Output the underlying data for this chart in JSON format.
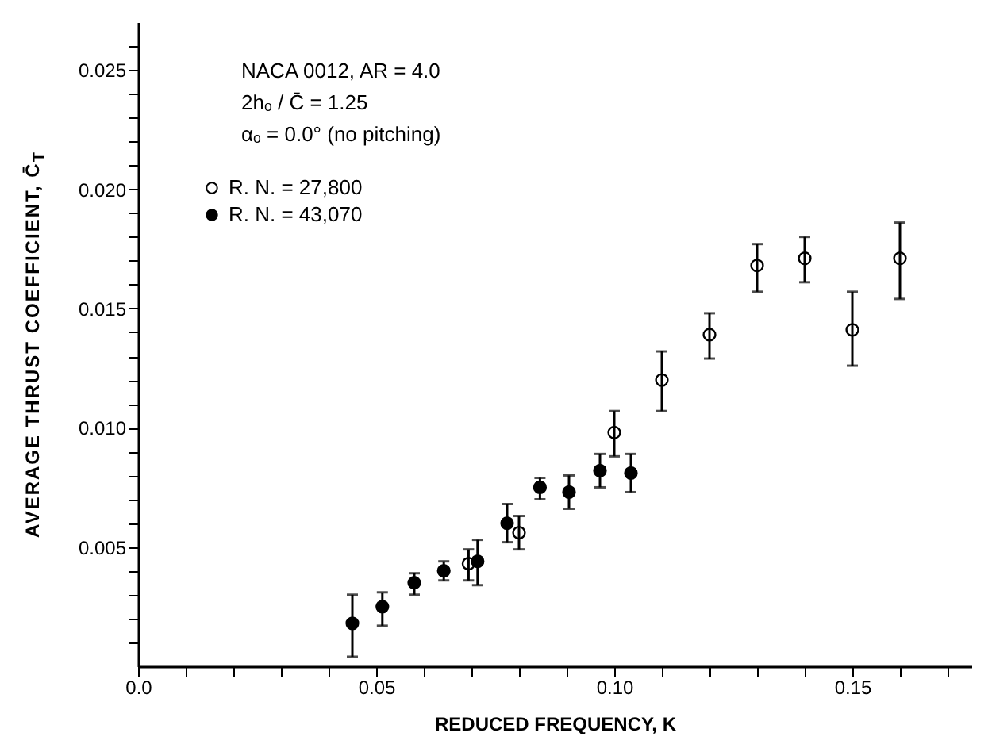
{
  "chart_data": {
    "type": "scatter",
    "xlabel": "REDUCED FREQUENCY, K",
    "ylabel": "AVERAGE THRUST COEFFICIENT, C̄$_{T}$",
    "annotations": [
      "NACA 0012,  AR = 4.0",
      "2hₒ / C̄ = 1.25",
      "αₒ = 0.0°  (no pitching)"
    ],
    "series": [
      {
        "name": "R. N. = 27,800",
        "color": "#ffffff",
        "x": [
          0.0694,
          0.08,
          0.1,
          0.11,
          0.12,
          0.13,
          0.14,
          0.15,
          0.16
        ],
        "values": [
          0.0043,
          0.0056,
          0.0098,
          0.012,
          0.0139,
          0.0168,
          0.0171,
          0.0141,
          0.0171
        ],
        "errors": [
          [
            0.0036,
            0.0049
          ],
          [
            0.0049,
            0.0063
          ],
          [
            0.0088,
            0.0107
          ],
          [
            0.0107,
            0.0132
          ],
          [
            0.0129,
            0.0148
          ],
          [
            0.0157,
            0.0177
          ],
          [
            0.0161,
            0.018
          ],
          [
            0.0126,
            0.0157
          ],
          [
            0.0154,
            0.0186
          ]
        ]
      },
      {
        "name": "R. N. = 43,070",
        "color": "#000000",
        "x": [
          0.045,
          0.0513,
          0.058,
          0.0642,
          0.0713,
          0.0775,
          0.0844,
          0.0905,
          0.097,
          0.1035
        ],
        "values": [
          0.0018,
          0.0025,
          0.0035,
          0.004,
          0.0044,
          0.006,
          0.0075,
          0.0073,
          0.0082,
          0.0081
        ],
        "errors": [
          [
            0.0004,
            0.003
          ],
          [
            0.0017,
            0.0031
          ],
          [
            0.003,
            0.0039
          ],
          [
            0.0036,
            0.0044
          ],
          [
            0.0034,
            0.0053
          ],
          [
            0.0052,
            0.0068
          ],
          [
            0.007,
            0.0079
          ],
          [
            0.0066,
            0.008
          ],
          [
            0.0075,
            0.0089
          ],
          [
            0.0073,
            0.0089
          ]
        ]
      }
    ],
    "xlim": [
      0,
      0.175
    ],
    "ylim": [
      0,
      0.027
    ],
    "xticks": [
      {
        "value": 0,
        "label": "0.0"
      },
      {
        "value": 0.01,
        "label": null
      },
      {
        "value": 0.02,
        "label": null
      },
      {
        "value": 0.03,
        "label": null
      },
      {
        "value": 0.04,
        "label": null
      },
      {
        "value": 0.05,
        "label": "0.05"
      },
      {
        "value": 0.06,
        "label": null
      },
      {
        "value": 0.07,
        "label": null
      },
      {
        "value": 0.08,
        "label": null
      },
      {
        "value": 0.09,
        "label": null
      },
      {
        "value": 0.1,
        "label": "0.10"
      },
      {
        "value": 0.11,
        "label": null
      },
      {
        "value": 0.12,
        "label": null
      },
      {
        "value": 0.13,
        "label": null
      },
      {
        "value": 0.14,
        "label": null
      },
      {
        "value": 0.15,
        "label": "0.15"
      },
      {
        "value": 0.16,
        "label": null
      },
      {
        "value": 0.17,
        "label": null
      }
    ],
    "yticks": [
      {
        "value": 0.001,
        "label": null
      },
      {
        "value": 0.002,
        "label": null
      },
      {
        "value": 0.003,
        "label": null
      },
      {
        "value": 0.004,
        "label": null
      },
      {
        "value": 0.005,
        "label": "0.005"
      },
      {
        "value": 0.006,
        "label": null
      },
      {
        "value": 0.007,
        "label": null
      },
      {
        "value": 0.008,
        "label": null
      },
      {
        "value": 0.009,
        "label": null
      },
      {
        "value": 0.01,
        "label": "0.010"
      },
      {
        "value": 0.011,
        "label": null
      },
      {
        "value": 0.012,
        "label": null
      },
      {
        "value": 0.013,
        "label": null
      },
      {
        "value": 0.014,
        "label": null
      },
      {
        "value": 0.015,
        "label": "0.015"
      },
      {
        "value": 0.016,
        "label": null
      },
      {
        "value": 0.017,
        "label": null
      },
      {
        "value": 0.018,
        "label": null
      },
      {
        "value": 0.019,
        "label": null
      },
      {
        "value": 0.02,
        "label": "0.020"
      },
      {
        "value": 0.021,
        "label": null
      },
      {
        "value": 0.022,
        "label": null
      },
      {
        "value": 0.023,
        "label": null
      },
      {
        "value": 0.024,
        "label": null
      },
      {
        "value": 0.025,
        "label": "0.025"
      },
      {
        "value": 0.026,
        "label": null
      }
    ],
    "legend": "top left",
    "marker": "circle"
  }
}
